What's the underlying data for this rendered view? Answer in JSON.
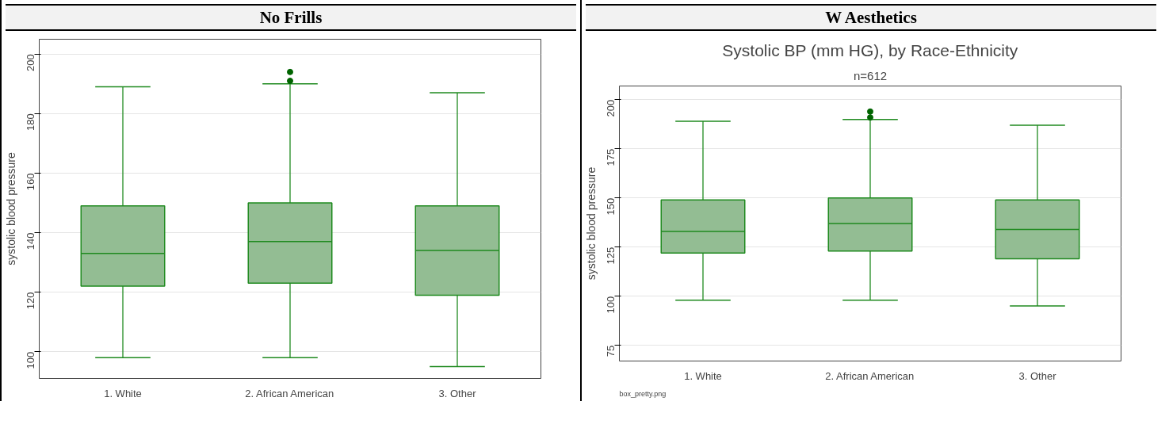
{
  "chart_data": [
    {
      "type": "box",
      "title": "No Frills",
      "ylabel": "systolic blood pressure",
      "categories": [
        "1. White",
        "2. African American",
        "3. Other"
      ],
      "color": "#93bd93",
      "boxes": [
        {
          "low": 98,
          "q1": 122,
          "median": 133,
          "q3": 149,
          "high": 189
        },
        {
          "low": 98,
          "q1": 123,
          "median": 137,
          "q3": 150,
          "high": 190,
          "outliers": [
            191,
            194
          ]
        },
        {
          "low": 95,
          "q1": 119,
          "median": 134,
          "q3": 149,
          "high": 187
        }
      ],
      "ylim": [
        91,
        205
      ],
      "yticks": [
        100,
        120,
        140,
        160,
        180,
        200
      ],
      "grid": "y"
    },
    {
      "type": "box",
      "title": "W Aesthetics",
      "subtitle": "Systolic BP (mm HG), by Race-Ethnicity",
      "annotations": [
        "n=612",
        "box_pretty.png"
      ],
      "ylabel": "systolic blood pressure",
      "categories": [
        "1. White",
        "2. African American",
        "3. Other"
      ],
      "color": "#93bd93",
      "boxes": [
        {
          "low": 98,
          "q1": 122,
          "median": 133,
          "q3": 149,
          "high": 189
        },
        {
          "low": 98,
          "q1": 123,
          "median": 137,
          "q3": 150,
          "high": 190,
          "outliers": [
            191,
            194
          ]
        },
        {
          "low": 95,
          "q1": 119,
          "median": 134,
          "q3": 149,
          "high": 187
        }
      ],
      "ylim": [
        67,
        207
      ],
      "yticks": [
        75,
        100,
        125,
        150,
        175,
        200
      ],
      "grid": "y"
    }
  ]
}
